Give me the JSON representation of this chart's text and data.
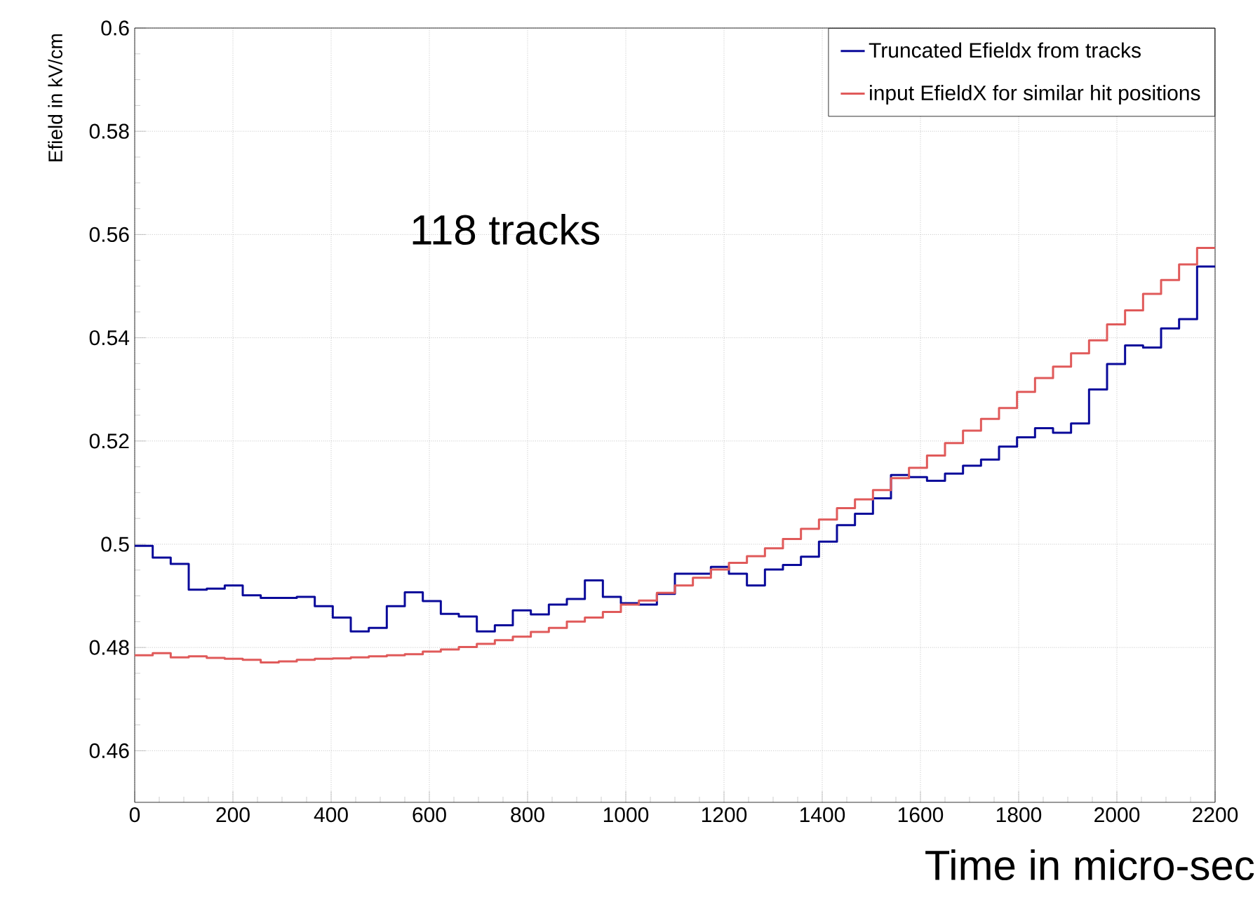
{
  "chart_data": {
    "type": "histogram",
    "xlabel": "Time in micro-sec",
    "ylabel": "Efield in kV/cm",
    "annotations": [
      "118 tracks"
    ],
    "bins": [
      0,
      36.67,
      73.33,
      110,
      146.67,
      183.33,
      220,
      256.67,
      293.33,
      330,
      366.67,
      403.33,
      440,
      476.67,
      513.33,
      550,
      586.67,
      623.33,
      660,
      696.67,
      733.33,
      770,
      806.67,
      843.33,
      880,
      916.67,
      953.33,
      990,
      1026.67,
      1063.33,
      1100,
      1136.67,
      1173.33,
      1210,
      1246.67,
      1283.33,
      1320,
      1356.67,
      1393.33,
      1430,
      1466.67,
      1503.33,
      1540,
      1576.67,
      1613.33,
      1650,
      1686.67,
      1723.33,
      1760,
      1796.67,
      1833.33,
      1870,
      1906.67,
      1943.33,
      1980,
      2016.67,
      2053.33,
      2090,
      2126.67,
      2163.33,
      2200
    ],
    "series": [
      {
        "name": "Truncated Efieldx from tracks",
        "color": "#0a0a9a",
        "values": [
          0.4997,
          0.4974,
          0.4962,
          0.4912,
          0.4914,
          0.492,
          0.4901,
          0.4896,
          0.4896,
          0.4898,
          0.488,
          0.4858,
          0.4831,
          0.4838,
          0.488,
          0.4907,
          0.489,
          0.4865,
          0.486,
          0.4831,
          0.4843,
          0.4872,
          0.4864,
          0.4883,
          0.4894,
          0.493,
          0.4898,
          0.4886,
          0.4883,
          0.4904,
          0.4943,
          0.4943,
          0.4956,
          0.4943,
          0.492,
          0.4951,
          0.496,
          0.4976,
          0.5005,
          0.5037,
          0.5059,
          0.5089,
          0.5134,
          0.513,
          0.5123,
          0.5137,
          0.5152,
          0.5164,
          0.5189,
          0.5207,
          0.5225,
          0.5216,
          0.5234,
          0.53,
          0.5349,
          0.5385,
          0.5381,
          0.5418,
          0.5436,
          0.5538
        ]
      },
      {
        "name": "input EfieldX for similar hit positions",
        "color": "#e05a5a",
        "values": [
          0.4785,
          0.4789,
          0.4781,
          0.4783,
          0.478,
          0.4778,
          0.4776,
          0.4771,
          0.4773,
          0.4776,
          0.4778,
          0.4779,
          0.4781,
          0.4783,
          0.4785,
          0.4787,
          0.4792,
          0.4796,
          0.4801,
          0.4807,
          0.4814,
          0.4821,
          0.483,
          0.4838,
          0.485,
          0.4858,
          0.4869,
          0.4883,
          0.4891,
          0.4906,
          0.492,
          0.4935,
          0.4951,
          0.4964,
          0.4977,
          0.4992,
          0.501,
          0.503,
          0.5048,
          0.507,
          0.5087,
          0.5105,
          0.5128,
          0.5148,
          0.5172,
          0.5196,
          0.522,
          0.5243,
          0.5264,
          0.5295,
          0.5322,
          0.5344,
          0.537,
          0.5395,
          0.5426,
          0.5453,
          0.5485,
          0.5512,
          0.5542,
          0.5574
        ]
      }
    ],
    "xlim": [
      0,
      2200
    ],
    "ylim": [
      0.45,
      0.6
    ],
    "xticks": [
      0,
      200,
      400,
      600,
      800,
      1000,
      1200,
      1400,
      1600,
      1800,
      2000,
      2200
    ],
    "yticks": [
      0.46,
      0.48,
      0.5,
      0.52,
      0.54,
      0.56,
      0.58,
      0.6
    ],
    "grid": true,
    "legend": "top right"
  }
}
